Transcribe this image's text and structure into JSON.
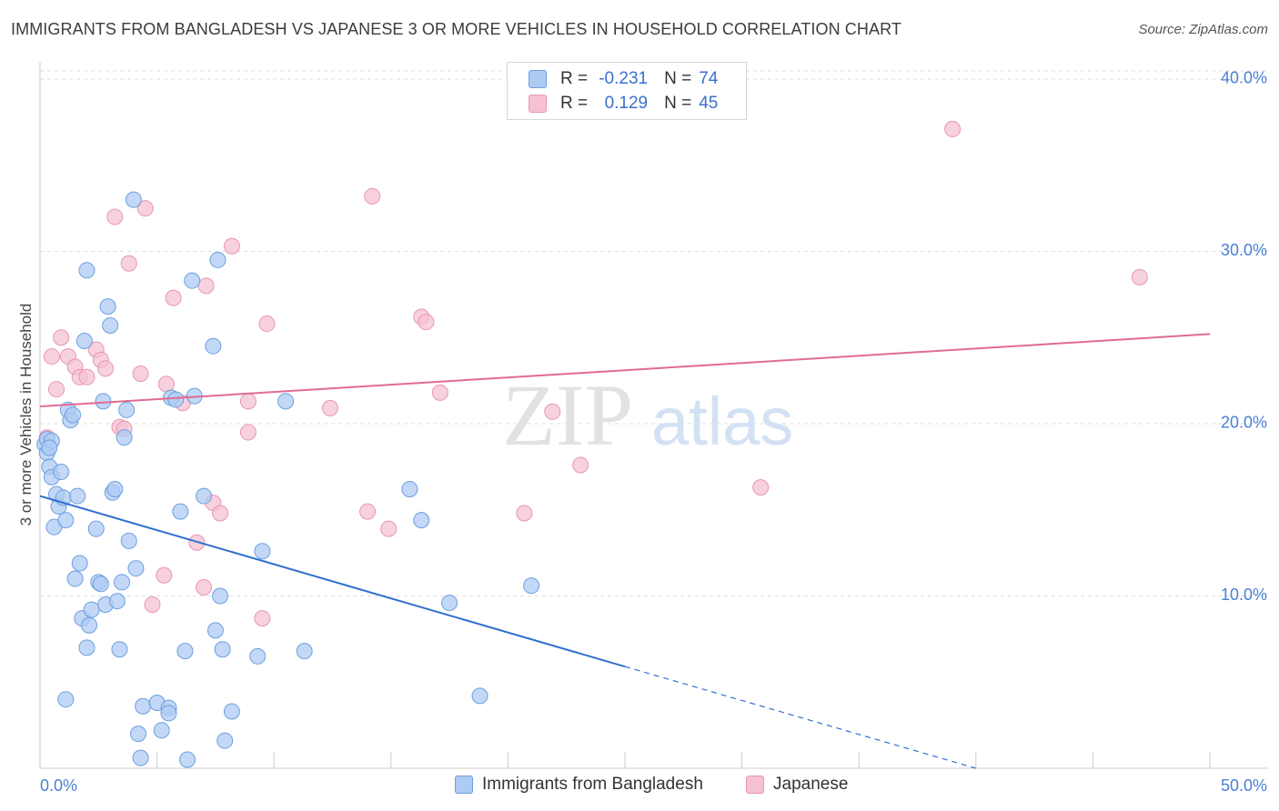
{
  "header": {
    "title": "IMMIGRANTS FROM BANGLADESH VS JAPANESE 3 OR MORE VEHICLES IN HOUSEHOLD CORRELATION CHART",
    "source": "Source: ZipAtlas.com"
  },
  "watermark": {
    "zip": "ZIP",
    "atlas": "atlas"
  },
  "legend": {
    "r_label": "R =",
    "n_label": "N =",
    "series": [
      {
        "r": "-0.231",
        "n": "74"
      },
      {
        "r": "0.129",
        "n": "45"
      }
    ]
  },
  "colors": {
    "blue_fill": "#aecbf3",
    "blue_stroke": "#6e9fe0",
    "blue_line": "#2f6fd0",
    "pink_fill": "#f6c2d3",
    "pink_stroke": "#e896b2",
    "pink_line": "#e06b93",
    "tick_text": "#4a7fd4",
    "grid": "#dddddd"
  },
  "chart_data": {
    "type": "scatter",
    "title": "IMMIGRANTS FROM BANGLADESH VS JAPANESE 3 OR MORE VEHICLES IN HOUSEHOLD CORRELATION CHART",
    "xlabel": "",
    "ylabel": "3 or more Vehicles in Household",
    "xlim": [
      0,
      50
    ],
    "ylim": [
      0,
      41
    ],
    "x_ticks": [
      "0.0%",
      "50.0%"
    ],
    "y_ticks": [
      {
        "value": 10,
        "label": "10.0%"
      },
      {
        "value": 20,
        "label": "20.0%"
      },
      {
        "value": 30,
        "label": "30.0%"
      },
      {
        "value": 40,
        "label": "40.0%"
      }
    ],
    "grid": true,
    "legend_position": "top-center",
    "series": [
      {
        "name": "Immigrants from Bangladesh",
        "color": "#aecbf3",
        "r": -0.231,
        "n": 74,
        "trend": {
          "x0": 0,
          "y0": 15.8,
          "x1": 25,
          "y1": 5.9,
          "dashed_to_x": 40,
          "dashed_to_y": 0
        },
        "points": [
          [
            0.2,
            18.8
          ],
          [
            0.3,
            19.1
          ],
          [
            0.3,
            18.3
          ],
          [
            0.4,
            17.5
          ],
          [
            0.5,
            16.9
          ],
          [
            0.6,
            14.0
          ],
          [
            0.7,
            15.9
          ],
          [
            0.8,
            15.2
          ],
          [
            0.9,
            17.2
          ],
          [
            1.0,
            15.7
          ],
          [
            1.1,
            4.0
          ],
          [
            1.2,
            20.8
          ],
          [
            1.3,
            20.2
          ],
          [
            1.4,
            20.5
          ],
          [
            1.5,
            11.0
          ],
          [
            1.6,
            15.8
          ],
          [
            1.7,
            11.9
          ],
          [
            1.8,
            8.7
          ],
          [
            1.9,
            24.8
          ],
          [
            2.0,
            7.0
          ],
          [
            2.1,
            8.3
          ],
          [
            2.2,
            9.2
          ],
          [
            2.4,
            13.9
          ],
          [
            2.5,
            10.8
          ],
          [
            2.6,
            10.7
          ],
          [
            2.7,
            21.3
          ],
          [
            2.8,
            9.5
          ],
          [
            2.9,
            26.8
          ],
          [
            3.0,
            25.7
          ],
          [
            3.1,
            16.0
          ],
          [
            3.2,
            16.2
          ],
          [
            3.3,
            9.7
          ],
          [
            3.4,
            6.9
          ],
          [
            3.5,
            10.8
          ],
          [
            3.6,
            19.2
          ],
          [
            3.7,
            20.8
          ],
          [
            3.8,
            13.2
          ],
          [
            4.0,
            33.0
          ],
          [
            4.1,
            11.6
          ],
          [
            4.2,
            2.0
          ],
          [
            4.3,
            0.6
          ],
          [
            4.4,
            3.6
          ],
          [
            5.0,
            3.8
          ],
          [
            5.2,
            2.2
          ],
          [
            5.5,
            3.5
          ],
          [
            5.5,
            3.2
          ],
          [
            5.6,
            21.5
          ],
          [
            5.8,
            21.4
          ],
          [
            6.0,
            14.9
          ],
          [
            6.2,
            6.8
          ],
          [
            6.3,
            0.5
          ],
          [
            6.5,
            28.3
          ],
          [
            6.6,
            21.6
          ],
          [
            7.0,
            15.8
          ],
          [
            7.4,
            24.5
          ],
          [
            7.5,
            8.0
          ],
          [
            7.6,
            29.5
          ],
          [
            7.7,
            10.0
          ],
          [
            7.8,
            6.9
          ],
          [
            7.9,
            1.6
          ],
          [
            8.2,
            3.3
          ],
          [
            9.3,
            6.5
          ],
          [
            9.5,
            12.6
          ],
          [
            10.5,
            21.3
          ],
          [
            11.3,
            6.8
          ],
          [
            15.8,
            16.2
          ],
          [
            16.3,
            14.4
          ],
          [
            17.5,
            9.6
          ],
          [
            18.8,
            4.2
          ],
          [
            21.0,
            10.6
          ],
          [
            1.1,
            14.4
          ],
          [
            2.0,
            28.9
          ],
          [
            0.5,
            19.0
          ],
          [
            0.4,
            18.6
          ]
        ]
      },
      {
        "name": "Japanese",
        "color": "#f6c2d3",
        "r": 0.129,
        "n": 45,
        "trend": {
          "x0": 0,
          "y0": 21.0,
          "x1": 50,
          "y1": 25.2
        },
        "points": [
          [
            0.3,
            19.2
          ],
          [
            0.5,
            23.9
          ],
          [
            0.7,
            22.0
          ],
          [
            0.9,
            25.0
          ],
          [
            1.2,
            23.9
          ],
          [
            1.5,
            23.3
          ],
          [
            1.7,
            22.7
          ],
          [
            2.0,
            22.7
          ],
          [
            2.4,
            24.3
          ],
          [
            2.6,
            23.7
          ],
          [
            2.8,
            23.2
          ],
          [
            3.2,
            32.0
          ],
          [
            3.4,
            19.8
          ],
          [
            3.6,
            19.7
          ],
          [
            3.8,
            29.3
          ],
          [
            4.3,
            22.9
          ],
          [
            4.5,
            32.5
          ],
          [
            4.8,
            9.5
          ],
          [
            5.3,
            11.2
          ],
          [
            5.4,
            22.3
          ],
          [
            5.7,
            27.3
          ],
          [
            6.1,
            21.2
          ],
          [
            6.7,
            13.1
          ],
          [
            7.0,
            10.5
          ],
          [
            7.1,
            28.0
          ],
          [
            7.4,
            15.4
          ],
          [
            7.7,
            14.8
          ],
          [
            8.2,
            30.3
          ],
          [
            8.9,
            21.3
          ],
          [
            8.9,
            19.5
          ],
          [
            9.5,
            8.7
          ],
          [
            9.7,
            25.8
          ],
          [
            12.4,
            20.9
          ],
          [
            14.0,
            14.9
          ],
          [
            14.2,
            33.2
          ],
          [
            14.9,
            13.9
          ],
          [
            16.3,
            26.2
          ],
          [
            16.5,
            25.9
          ],
          [
            17.1,
            21.8
          ],
          [
            20.7,
            14.8
          ],
          [
            21.9,
            20.7
          ],
          [
            23.1,
            17.6
          ],
          [
            30.8,
            16.3
          ],
          [
            39.0,
            37.1
          ],
          [
            47.0,
            28.5
          ]
        ]
      }
    ]
  },
  "bottom_legend": [
    {
      "label": "Immigrants from Bangladesh"
    },
    {
      "label": "Japanese"
    }
  ]
}
